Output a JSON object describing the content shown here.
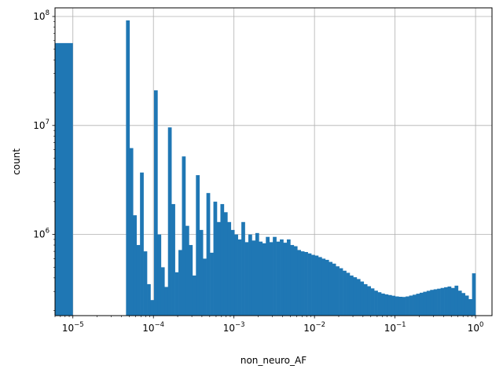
{
  "chart_data": {
    "type": "bar",
    "title": "",
    "xlabel": "non_neuro_AF",
    "ylabel": "count",
    "xscale": "log",
    "yscale": "log",
    "xlim": [
      6e-06,
      1.6
    ],
    "ylim": [
      180000,
      120000000
    ],
    "grid": true,
    "bar_color": "#1f77b4",
    "x_ticks": [
      {
        "value": 1e-05,
        "base": "10",
        "exp": "−5"
      },
      {
        "value": 0.0001,
        "base": "10",
        "exp": "−4"
      },
      {
        "value": 0.001,
        "base": "10",
        "exp": "−3"
      },
      {
        "value": 0.01,
        "base": "10",
        "exp": "−2"
      },
      {
        "value": 0.1,
        "base": "10",
        "exp": "−1"
      },
      {
        "value": 1,
        "base": "10",
        "exp": "0"
      }
    ],
    "y_ticks": [
      {
        "value": 1000000.0,
        "base": "10",
        "exp": "6"
      },
      {
        "value": 10000000.0,
        "base": "10",
        "exp": "7"
      },
      {
        "value": 100000000.0,
        "base": "10",
        "exp": "8"
      }
    ],
    "first_bar": {
      "x_start": 6e-06,
      "x_end": 1e-05,
      "value": 57000000
    },
    "bins": {
      "start": 4.57e-05,
      "end": 1,
      "values": [
        92000000,
        6200000,
        1500000,
        800000,
        3700000,
        700000,
        350000,
        250000,
        21000000,
        1000000,
        500000,
        330000,
        9600000,
        1900000,
        450000,
        720000,
        5200000,
        1200000,
        800000,
        420000,
        3500000,
        1100000,
        600000,
        2400000,
        680000,
        2000000,
        1300000,
        1900000,
        1600000,
        1300000,
        1100000,
        1000000,
        900000,
        1300000,
        850000,
        1000000,
        880000,
        1030000,
        860000,
        830000,
        950000,
        850000,
        950000,
        860000,
        900000,
        840000,
        900000,
        800000,
        780000,
        720000,
        700000,
        690000,
        670000,
        650000,
        640000,
        620000,
        600000,
        585000,
        560000,
        540000,
        510000,
        490000,
        465000,
        445000,
        420000,
        405000,
        390000,
        370000,
        350000,
        335000,
        320000,
        305000,
        295000,
        287000,
        282000,
        278000,
        274000,
        270000,
        268000,
        267000,
        270000,
        275000,
        280000,
        286000,
        292000,
        298000,
        304000,
        310000,
        314000,
        318000,
        323000,
        328000,
        333000,
        323000,
        339000,
        305000,
        290000,
        275000,
        255000,
        440000
      ]
    }
  }
}
